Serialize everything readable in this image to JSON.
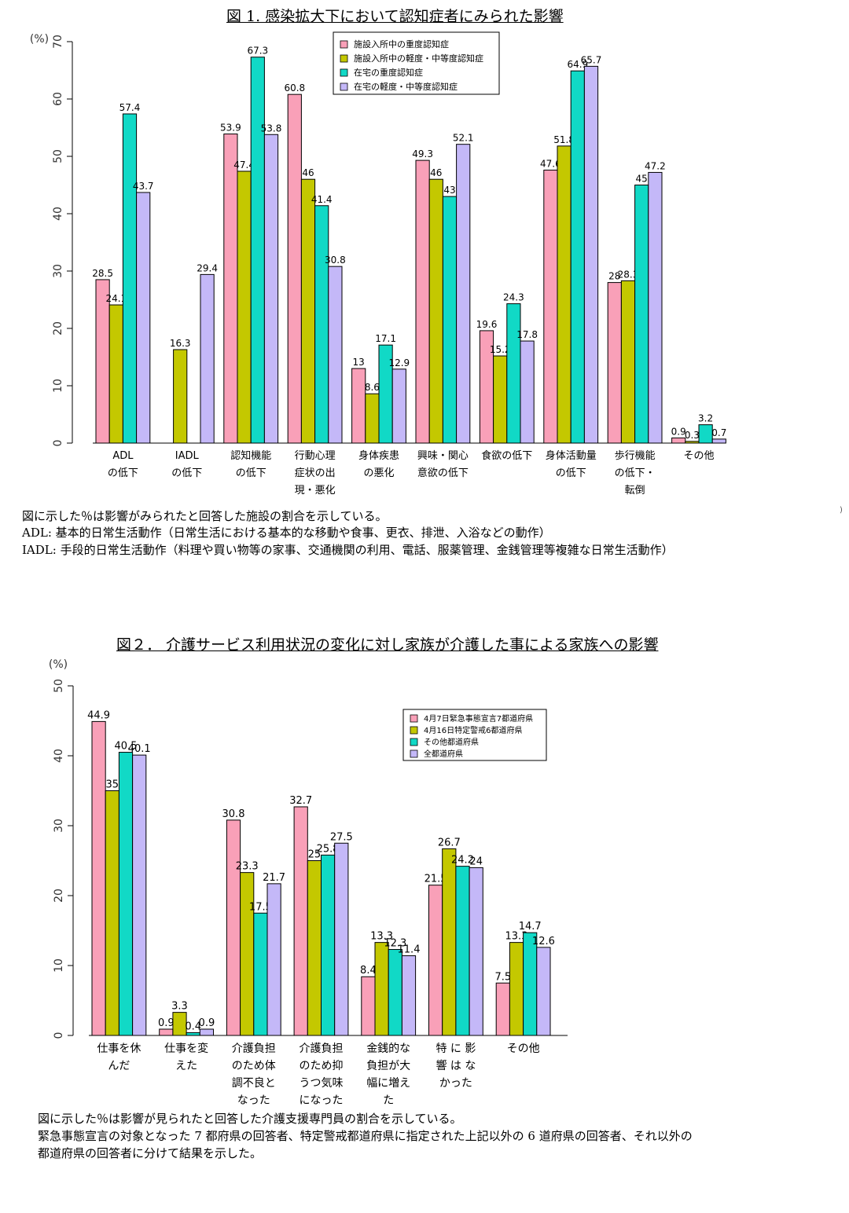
{
  "charts": [
    {
      "title": "図 1. 感染拡大下において認知症者にみられた影響",
      "notes": [
        "図に示した％は影響がみられたと回答した施設の割合を示している。",
        "ADL: 基本的日常生活動作（日常生活における基本的な移動や食事、更衣、排泄、入浴などの動作）",
        "IADL: 手段的日常生活動作（料理や買い物等の家事、交通機関の利用、電話、服薬管理、金銭管理等複雑な日常生活動作）"
      ],
      "stray_mark": ")"
    },
    {
      "title": "図２． 介護サービス利用状況の変化に対し家族が介護した事による家族への影響",
      "notes": [
        "図に示した％は影響が見られたと回答した介護支援専門員の割合を示している。",
        "緊急事態宣言の対象となった 7 都府県の回答者、特定警戒都道府県に指定された上記以外の 6 道府県の回答者、それ以外の",
        "都道府県の回答者に分けて結果を示した。"
      ]
    }
  ],
  "colors": [
    "#f9a0b8",
    "#c4c800",
    "#11d9c6",
    "#c4b8f8"
  ],
  "chart_data": [
    {
      "type": "bar",
      "ylabel": "(%)",
      "ylim": [
        0,
        70
      ],
      "yticks": [
        0,
        10,
        20,
        30,
        40,
        50,
        60,
        70
      ],
      "grid": false,
      "legend": "top-center",
      "categories": [
        [
          "ADL",
          "の低下"
        ],
        [
          "IADL",
          "の低下"
        ],
        [
          "認知機能",
          "の低下"
        ],
        [
          "行動心理",
          "症状の出",
          "現・悪化"
        ],
        [
          "身体疾患",
          "の悪化"
        ],
        [
          "興味・関心",
          "意欲の低下"
        ],
        [
          "食欲の低下"
        ],
        [
          "身体活動量",
          "の低下"
        ],
        [
          "歩行機能",
          "の低下・",
          "転倒"
        ],
        [
          "その他"
        ]
      ],
      "series": [
        {
          "name": "施設入所中の重度認知症",
          "values": [
            28.5,
            null,
            53.9,
            60.8,
            13,
            49.3,
            19.6,
            47.6,
            28,
            0.9
          ]
        },
        {
          "name": "施設入所中の軽度・中等度認知症",
          "values": [
            24.1,
            16.3,
            47.4,
            46,
            8.6,
            46,
            15.2,
            51.8,
            28.3,
            0.3
          ]
        },
        {
          "name": "在宅の重度認知症",
          "values": [
            57.4,
            null,
            67.3,
            41.4,
            17.1,
            43,
            24.3,
            64.9,
            45,
            3.2
          ]
        },
        {
          "name": "在宅の軽度・中等度認知症",
          "values": [
            43.7,
            29.4,
            53.8,
            30.8,
            12.9,
            52.1,
            17.8,
            65.7,
            47.2,
            0.7
          ]
        }
      ]
    },
    {
      "type": "bar",
      "ylabel": "(%)",
      "ylim": [
        0,
        50
      ],
      "yticks": [
        0,
        10,
        20,
        30,
        40,
        50
      ],
      "grid": false,
      "legend": "top-right",
      "categories": [
        [
          "仕事を休",
          "んだ"
        ],
        [
          "仕事を変",
          "えた"
        ],
        [
          "介護負担",
          "のため体",
          "調不良と",
          "なった"
        ],
        [
          "介護負担",
          "のため抑",
          "うつ気味",
          "になった"
        ],
        [
          "金銭的な",
          "負担が大",
          "幅に増え",
          "た"
        ],
        [
          "特 に 影",
          "響 は な",
          "かった"
        ],
        [
          "その他"
        ]
      ],
      "series": [
        {
          "name": "4月7日緊急事態宣言7都道府県",
          "values": [
            44.9,
            0.9,
            30.8,
            32.7,
            8.4,
            21.5,
            7.5
          ]
        },
        {
          "name": "4月16日特定警戒6都道府県",
          "values": [
            35,
            3.3,
            23.3,
            25,
            13.3,
            26.7,
            13.3
          ]
        },
        {
          "name": "その他都道府県",
          "values": [
            40.5,
            0.4,
            17.5,
            25.8,
            12.3,
            24.2,
            14.7
          ]
        },
        {
          "name": "全都道府県",
          "values": [
            40.1,
            0.9,
            21.7,
            27.5,
            11.4,
            24,
            12.6
          ]
        }
      ]
    }
  ]
}
